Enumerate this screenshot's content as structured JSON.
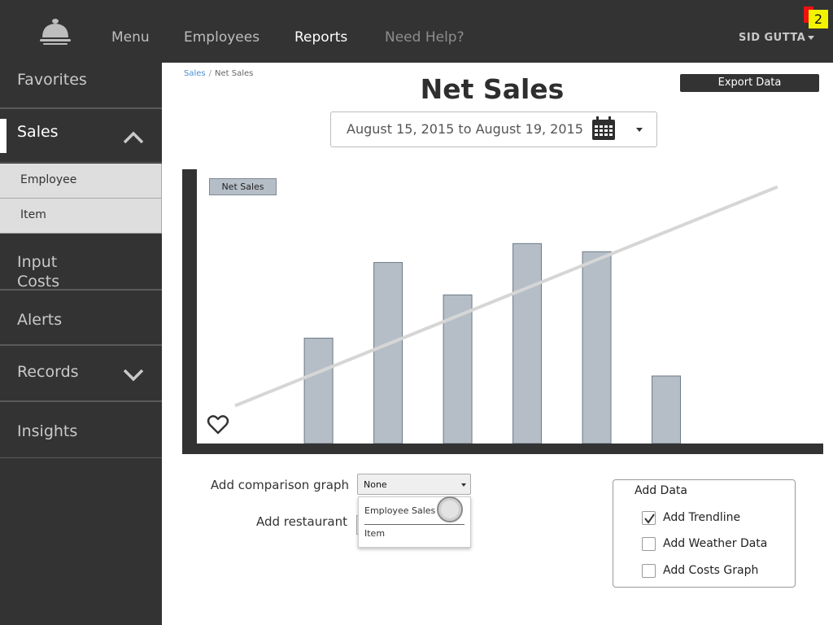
{
  "topbar": {
    "nav": [
      "Menu",
      "Employees",
      "Reports",
      "Need Help?"
    ],
    "active_nav": "Reports",
    "user_name": "SID GUTTA",
    "notification_count": "2",
    "colors": {
      "bar": "#333333",
      "badge": "#f3f300",
      "badge_alert": "#ee1111"
    }
  },
  "sidebar": {
    "items": [
      {
        "label": "Favorites"
      },
      {
        "label": "Sales",
        "expanded": true,
        "icon": "chevron-up-icon"
      },
      {
        "label": "Input Costs"
      },
      {
        "label": "Alerts"
      },
      {
        "label": "Records",
        "icon": "chevron-down-icon"
      },
      {
        "label": "Insights"
      }
    ],
    "sales_subitems": [
      "Employee",
      "Item"
    ]
  },
  "breadcrumb": {
    "link": "Sales",
    "separator": "/",
    "current": "Net Sales"
  },
  "page": {
    "title": "Net Sales",
    "export_label": "Export Data",
    "date_range": "August 15, 2015 to August 19, 2015"
  },
  "chart_data": {
    "type": "bar",
    "legend": "Net Sales",
    "series": [
      {
        "name": "Net Sales",
        "values": [
          0,
          39,
          67,
          55,
          74,
          71,
          25,
          0
        ]
      }
    ],
    "trendline": {
      "start": 14,
      "end": 95
    },
    "ylim": [
      0,
      100
    ],
    "title": "",
    "xlabel": "",
    "ylabel": "",
    "colors": {
      "bar": "#b5bec7",
      "bar_border": "#6e7a86",
      "axis": "#333333",
      "trend": "#d6d6d6"
    }
  },
  "controls": {
    "comparison_label": "Add comparison graph",
    "comparison_value": "None",
    "restaurant_label": "Add restaurant",
    "dropdown_options": [
      "Employee Sales",
      "Item"
    ]
  },
  "add_data": {
    "title": "Add Data",
    "options": [
      {
        "label": "Add Trendline",
        "checked": true
      },
      {
        "label": "Add Weather Data",
        "checked": false
      },
      {
        "label": "Add Costs Graph",
        "checked": false
      }
    ]
  }
}
